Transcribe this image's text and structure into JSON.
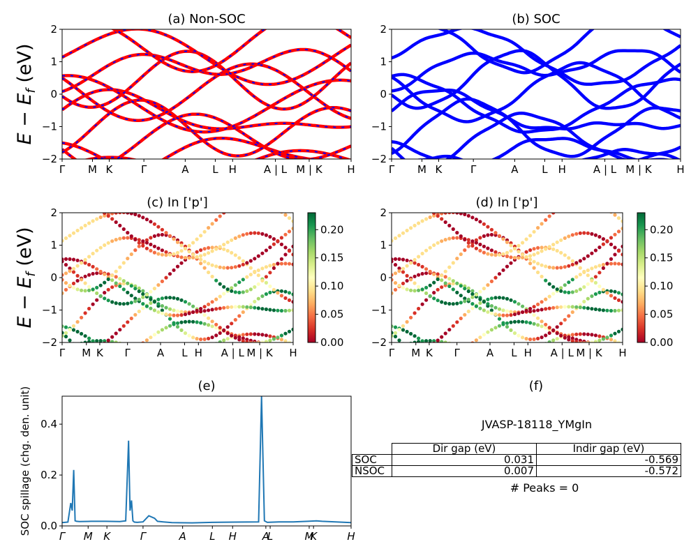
{
  "figure": {
    "panels": {
      "a": {
        "title": "(a) Non-SOC"
      },
      "b": {
        "title": "(b) SOC"
      },
      "c": {
        "title": "(c)  In ['p']"
      },
      "d": {
        "title": "(d) In ['p']"
      },
      "e": {
        "title": "(e)"
      },
      "f": {
        "title": "(f)"
      }
    },
    "band_ylabel": "E − E",
    "band_ylabel_sub": "f",
    "band_ylabel_unit": " (eV)",
    "spill_ylabel": "SOC spillage (chg. den. unit)",
    "kpath_labels": [
      "Γ",
      "M",
      "K",
      "Γ",
      "A",
      "L",
      "H",
      "A | L",
      "M | K",
      "H"
    ],
    "spill_kpath_labels": [
      "Γ",
      "M",
      "K",
      "Γ",
      "A",
      "L",
      "H",
      "A",
      "L",
      "M",
      "K",
      "H"
    ],
    "band_yticks": [
      "2",
      "1",
      "0",
      "−1",
      "−2"
    ],
    "colorbar_ticks": [
      "0.20",
      "0.15",
      "0.10",
      "0.05",
      "0.00"
    ],
    "spill_yticks": [
      "0.4",
      "0.2",
      "0.0"
    ],
    "material": "JVASP-18118_YMgIn",
    "table": {
      "headers": [
        "Dir gap (eV)",
        "Indir gap (eV)"
      ],
      "rows": [
        {
          "name": "SOC",
          "dir": "0.031",
          "indir": "-0.569"
        },
        {
          "name": "NSOC",
          "dir": "0.007",
          "indir": "-0.572"
        }
      ]
    },
    "peaks": "# Peaks = 0"
  },
  "colors": {
    "nonsoc_band": "#ff0000",
    "nonsoc_dash": "#0000ff",
    "soc_band": "#0000ff",
    "spillage_line": "#1f77b4",
    "colormap": [
      "#a50026",
      "#d73027",
      "#f46d43",
      "#fdae61",
      "#fee08b",
      "#ffffbf",
      "#d9ef8b",
      "#a6d96a",
      "#66bd63",
      "#1a9850",
      "#006837"
    ]
  },
  "chart_data": [
    {
      "type": "line",
      "title": "(a) Non-SOC",
      "ylabel": "E − E_f (eV)",
      "ylim": [
        -2,
        2
      ],
      "x_ticks": [
        "Γ",
        "M",
        "K",
        "Γ",
        "A",
        "L",
        "H",
        "A | L",
        "M | K",
        "H"
      ],
      "note": "Electronic band structure; bands drawn red with blue dashes."
    },
    {
      "type": "line",
      "title": "(b) SOC",
      "ylim": [
        -2,
        2
      ],
      "x_ticks": [
        "Γ",
        "M",
        "K",
        "Γ",
        "A",
        "L",
        "H",
        "A | L",
        "M | K",
        "H"
      ]
    },
    {
      "type": "scatter",
      "title": "(c)  In ['p']",
      "ylabel": "E − E_f (eV)",
      "ylim": [
        -2,
        2
      ],
      "colorbar_range": [
        0.0,
        0.23
      ],
      "x_ticks": [
        "Γ",
        "M",
        "K",
        "Γ",
        "A",
        "L",
        "H",
        "A | L",
        "M | K",
        "H"
      ]
    },
    {
      "type": "scatter",
      "title": "(d) In ['p']",
      "ylim": [
        -2,
        2
      ],
      "colorbar_range": [
        0.0,
        0.23
      ],
      "x_ticks": [
        "Γ",
        "M",
        "K",
        "Γ",
        "A",
        "L",
        "H",
        "A | L",
        "M | K",
        "H"
      ]
    },
    {
      "type": "line",
      "title": "(e)",
      "ylabel": "SOC spillage (chg. den. unit)",
      "ylim": [
        0,
        0.51
      ],
      "x": [
        0,
        0.02,
        0.03,
        0.035,
        0.04,
        0.045,
        0.05,
        0.06,
        0.1,
        0.15,
        0.2,
        0.22,
        0.23,
        0.235,
        0.24,
        0.245,
        0.25,
        0.26,
        0.28,
        0.3,
        0.32,
        0.33,
        0.35,
        0.38,
        0.45,
        0.52,
        0.6,
        0.68,
        0.69,
        0.7,
        0.71,
        0.75,
        0.8,
        0.85,
        0.88,
        0.9,
        1.0
      ],
      "y": [
        0.013,
        0.015,
        0.09,
        0.06,
        0.22,
        0.02,
        0.018,
        0.017,
        0.018,
        0.018,
        0.017,
        0.02,
        0.335,
        0.06,
        0.1,
        0.02,
        0.015,
        0.014,
        0.016,
        0.04,
        0.03,
        0.018,
        0.016,
        0.013,
        0.012,
        0.014,
        0.015,
        0.016,
        0.51,
        0.02,
        0.014,
        0.016,
        0.016,
        0.018,
        0.02,
        0.018,
        0.013
      ],
      "x_ticks": [
        "Γ",
        "M",
        "K",
        "Γ",
        "A",
        "L",
        "H",
        "A",
        "L",
        "M",
        "K",
        "H"
      ]
    },
    {
      "type": "table",
      "title": "(f)",
      "caption": "JVASP-18118_YMgIn",
      "columns": [
        "",
        "Dir gap (eV)",
        "Indir gap (eV)"
      ],
      "rows": [
        [
          "SOC",
          0.031,
          -0.569
        ],
        [
          "NSOC",
          0.007,
          -0.572
        ]
      ],
      "footer": "# Peaks = 0"
    }
  ]
}
